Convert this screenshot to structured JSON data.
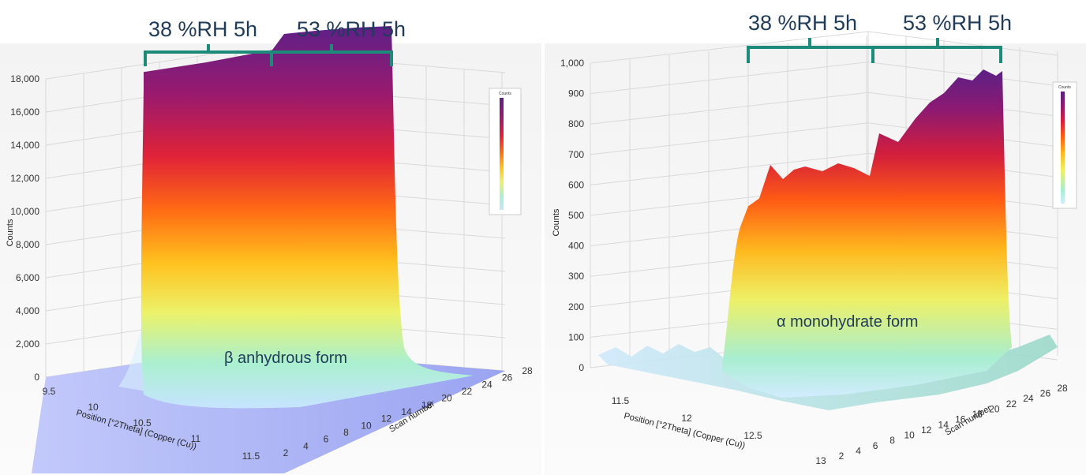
{
  "chart_data": [
    {
      "type": "surface",
      "annotation": "β anhydrous form",
      "header_brackets": [
        "38 %RH 5h",
        "53 %RH 5h"
      ],
      "z_axis": {
        "label": "Counts",
        "ticks": [
          "0",
          "2,000",
          "4,000",
          "6,000",
          "8,000",
          "10,000",
          "12,000",
          "14,000",
          "16,000",
          "18,000"
        ],
        "range": [
          0,
          18000
        ]
      },
      "x_axis": {
        "label": "Position [°2Theta] (Copper (Cu))",
        "ticks": [
          "9.5",
          "10",
          "10.5",
          "11",
          "11.5"
        ]
      },
      "y_axis": {
        "label": "Scan number",
        "ticks": [
          "2",
          "4",
          "6",
          "8",
          "10",
          "12",
          "14",
          "18",
          "20",
          "22",
          "24",
          "26",
          "28"
        ]
      },
      "colorbar": {
        "title": "Counts"
      },
      "peak_counts_start": 16800,
      "peak_counts_end": 19000
    },
    {
      "type": "surface",
      "annotation": "α monohydrate form",
      "header_brackets": [
        "38 %RH 5h",
        "53 %RH 5h"
      ],
      "z_axis": {
        "label": "Counts",
        "ticks": [
          "0",
          "100",
          "200",
          "300",
          "400",
          "500",
          "600",
          "700",
          "800",
          "900",
          "1,000"
        ],
        "range": [
          0,
          1000
        ]
      },
      "x_axis": {
        "label": "Position [°2Theta] (Copper (Cu))",
        "ticks": [
          "11.5",
          "12",
          "12.5",
          "13"
        ]
      },
      "y_axis": {
        "label": "Scan number",
        "ticks": [
          "2",
          "4",
          "6",
          "8",
          "10",
          "12",
          "14",
          "16",
          "18",
          "20",
          "22",
          "24",
          "26",
          "28"
        ]
      },
      "colorbar": {
        "title": "Counts"
      },
      "peak_counts_start": 530,
      "peak_counts_mid": 640,
      "peak_counts_end": 1000
    }
  ],
  "colors": {
    "bracket": "#1e8a7a",
    "text": "#1f3b5a",
    "floor": "#8c97f0",
    "grid": "#d6d6d6",
    "surface_gradient": [
      "#c8e6ff",
      "#aef0c8",
      "#f0f060",
      "#ffb020",
      "#ff5a10",
      "#d01a3a",
      "#8a1a7a",
      "#5a2080"
    ]
  }
}
